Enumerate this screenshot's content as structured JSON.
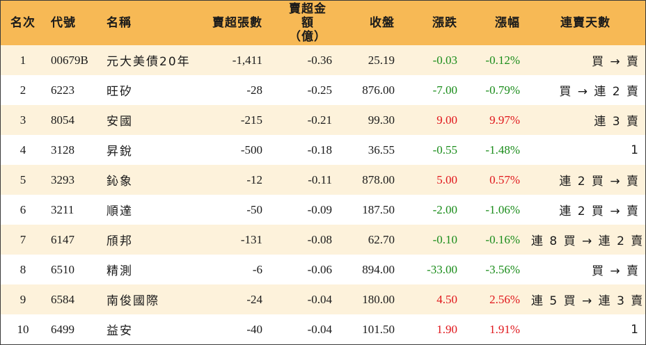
{
  "headers": [
    "名次",
    "代號",
    "名稱",
    "賣超張數",
    "賣超金額",
    "（億）",
    "收盤",
    "漲跌",
    "漲幅",
    "連賣天數"
  ],
  "rows": [
    {
      "rank": "1",
      "code": "00679B",
      "name": "元大美債20年",
      "vol": "-1,411",
      "amt": "-0.36",
      "close": "25.19",
      "chg": "-0.03",
      "pct": "-0.12%",
      "days": "買 → 賣",
      "dir": "down"
    },
    {
      "rank": "2",
      "code": "6223",
      "name": "旺矽",
      "vol": "-28",
      "amt": "-0.25",
      "close": "876.00",
      "chg": "-7.00",
      "pct": "-0.79%",
      "days": "買 → 連 2 賣",
      "dir": "down"
    },
    {
      "rank": "3",
      "code": "8054",
      "name": "安國",
      "vol": "-215",
      "amt": "-0.21",
      "close": "99.30",
      "chg": "9.00",
      "pct": "9.97%",
      "days": "連 3 賣",
      "dir": "up"
    },
    {
      "rank": "4",
      "code": "3128",
      "name": "昇銳",
      "vol": "-500",
      "amt": "-0.18",
      "close": "36.55",
      "chg": "-0.55",
      "pct": "-1.48%",
      "days": "1",
      "dir": "down"
    },
    {
      "rank": "5",
      "code": "3293",
      "name": "鈊象",
      "vol": "-12",
      "amt": "-0.11",
      "close": "878.00",
      "chg": "5.00",
      "pct": "0.57%",
      "days": "連 2 買 → 賣",
      "dir": "up"
    },
    {
      "rank": "6",
      "code": "3211",
      "name": "順達",
      "vol": "-50",
      "amt": "-0.09",
      "close": "187.50",
      "chg": "-2.00",
      "pct": "-1.06%",
      "days": "連 2 買 → 賣",
      "dir": "down"
    },
    {
      "rank": "7",
      "code": "6147",
      "name": "頎邦",
      "vol": "-131",
      "amt": "-0.08",
      "close": "62.70",
      "chg": "-0.10",
      "pct": "-0.16%",
      "days": "連 8 買 → 連 2 賣",
      "dir": "down"
    },
    {
      "rank": "8",
      "code": "6510",
      "name": "精測",
      "vol": "-6",
      "amt": "-0.06",
      "close": "894.00",
      "chg": "-33.00",
      "pct": "-3.56%",
      "days": "買 → 賣",
      "dir": "down"
    },
    {
      "rank": "9",
      "code": "6584",
      "name": "南俊國際",
      "vol": "-24",
      "amt": "-0.04",
      "close": "180.00",
      "chg": "4.50",
      "pct": "2.56%",
      "days": "連 5 買 → 連 3 賣",
      "dir": "up"
    },
    {
      "rank": "10",
      "code": "6499",
      "name": "益安",
      "vol": "-40",
      "amt": "-0.04",
      "close": "101.50",
      "chg": "1.90",
      "pct": "1.91%",
      "days": "1",
      "dir": "up"
    }
  ],
  "colors": {
    "header_bg": "#f7b955",
    "odd_row_bg": "#fdf2db",
    "up": "#e0161b",
    "down": "#1a8c1a"
  }
}
